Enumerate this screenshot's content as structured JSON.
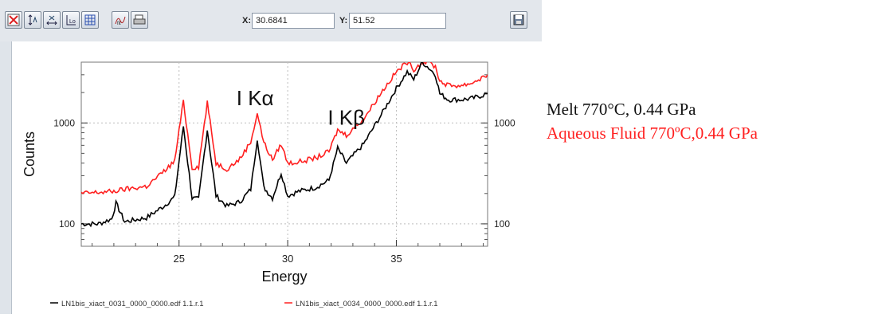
{
  "toolbar": {
    "icons": [
      "reset-zoom-icon",
      "y-autoscale-icon",
      "x-autoscale-icon",
      "log-scale-icon",
      "grid-icon",
      "fit-icon",
      "print-icon",
      "save-icon"
    ],
    "x_label": "X:",
    "x_value": "30.6841",
    "y_label": "Y:",
    "y_value": "51.52"
  },
  "colors": {
    "melt": "#000000",
    "fluid": "#ff2020",
    "grid": "#bdbdbd"
  },
  "chart_data": {
    "type": "line",
    "xlabel": "Energy",
    "ylabel": "Counts",
    "xlim": [
      20.5,
      39.2
    ],
    "ylim": [
      60,
      4000
    ],
    "yscale": "log",
    "grid": true,
    "x_ticks": [
      25,
      30,
      35
    ],
    "x_tick_labels": [
      "25",
      "30",
      "35"
    ],
    "y_ticks": [
      100,
      1000
    ],
    "y_tick_labels": [
      "100",
      "1000"
    ],
    "annotations": [
      {
        "text": "I Kα",
        "x": 28.5,
        "y": 1500
      },
      {
        "text": "I Kβ",
        "x": 32.7,
        "y": 960
      }
    ],
    "series": [
      {
        "name": "LN1bis_xiact_0031_0000_0000.edf 1.1.r.1",
        "color": "#000000",
        "x": [
          20.5,
          21.3,
          21.9,
          22.1,
          22.5,
          23.5,
          24.3,
          24.8,
          25.2,
          25.6,
          25.9,
          26.3,
          26.7,
          27.2,
          27.8,
          28.3,
          28.6,
          28.9,
          29.3,
          29.7,
          30.0,
          30.5,
          31.3,
          31.9,
          32.3,
          32.7,
          33.5,
          34.3,
          35.0,
          35.5,
          35.8,
          36.2,
          36.5,
          36.8,
          37.0,
          37.4,
          38.0,
          38.5,
          39.2
        ],
        "y": [
          100,
          100,
          112,
          160,
          105,
          115,
          150,
          185,
          930,
          180,
          175,
          860,
          190,
          150,
          165,
          220,
          700,
          230,
          180,
          320,
          190,
          210,
          230,
          270,
          560,
          400,
          620,
          1200,
          2200,
          3200,
          2700,
          4000,
          3500,
          3000,
          1950,
          1700,
          1700,
          1750,
          1950
        ]
      },
      {
        "name": "LN1bis_xiact_0034_0000_0000.edf 1.1.r.1",
        "color": "#ff2020",
        "x": [
          20.5,
          21.3,
          22.0,
          22.5,
          23.5,
          24.3,
          24.8,
          25.2,
          25.6,
          25.9,
          26.3,
          26.7,
          27.2,
          27.8,
          28.3,
          28.6,
          28.9,
          29.3,
          29.7,
          30.0,
          30.5,
          31.3,
          31.9,
          32.3,
          32.7,
          33.5,
          34.3,
          35.0,
          35.5,
          35.8,
          36.2,
          36.5,
          36.8,
          37.0,
          37.4,
          38.0,
          38.5,
          39.2
        ],
        "y": [
          200,
          205,
          210,
          220,
          235,
          330,
          420,
          1650,
          360,
          370,
          1600,
          400,
          350,
          440,
          650,
          1250,
          640,
          430,
          620,
          400,
          410,
          450,
          520,
          850,
          760,
          1100,
          2000,
          3200,
          4000,
          3400,
          4000,
          4000,
          3600,
          2600,
          2350,
          2350,
          2500,
          3000
        ]
      }
    ]
  },
  "bottom_legend": {
    "entry1": "LN1bis_xiact_0031_0000_0000.edf 1.1.r.1",
    "entry2": "LN1bis_xiact_0034_0000_0000.edf 1.1.r.1"
  },
  "side_legend": {
    "line1": "Melt 770°C, 0.44 GPa",
    "line2": "Aqueous Fluid 770ºC,0.44 GPa"
  }
}
